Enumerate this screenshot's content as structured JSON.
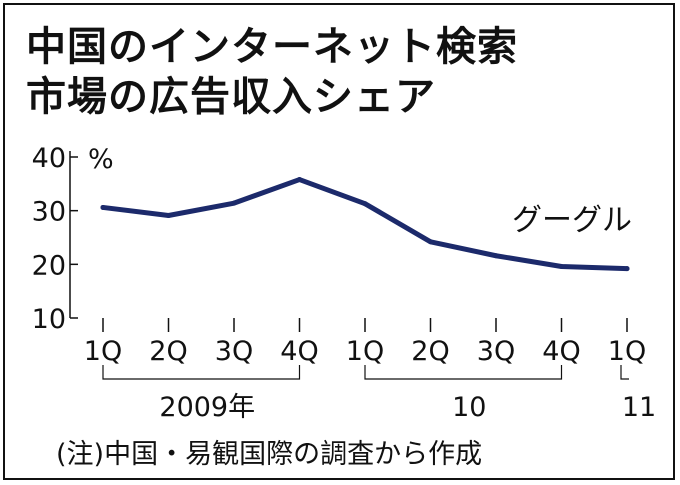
{
  "title": {
    "line1": "中国のインターネット検索",
    "line2": "市場の広告収入シェア"
  },
  "note": "(注)中国・易観国際の調査から作成",
  "chart_data": {
    "type": "line",
    "title": "中国のインターネット検索 市場の広告収入シェア",
    "ylabel": "%",
    "ylim": [
      10,
      40
    ],
    "yticks": [
      "10",
      "20",
      "30",
      "40"
    ],
    "categories": [
      "1Q",
      "2Q",
      "3Q",
      "4Q",
      "1Q",
      "2Q",
      "3Q",
      "4Q",
      "1Q"
    ],
    "year_groups": [
      {
        "label": "2009年",
        "from": 0,
        "to": 3
      },
      {
        "label": "10",
        "from": 4,
        "to": 7
      },
      {
        "label": "11",
        "from": 8,
        "to": 8
      }
    ],
    "series": [
      {
        "name": "グーグル",
        "color": "#1c2a6b",
        "values": [
          30.6,
          29.1,
          31.4,
          35.8,
          31.3,
          24.2,
          21.6,
          19.6,
          19.2
        ]
      }
    ],
    "grid": false
  }
}
